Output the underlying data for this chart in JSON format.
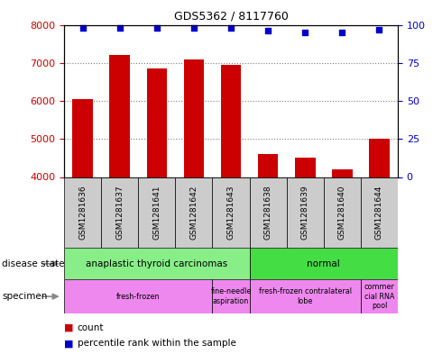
{
  "title": "GDS5362 / 8117760",
  "samples": [
    "GSM1281636",
    "GSM1281637",
    "GSM1281641",
    "GSM1281642",
    "GSM1281643",
    "GSM1281638",
    "GSM1281639",
    "GSM1281640",
    "GSM1281644"
  ],
  "counts": [
    6050,
    7200,
    6850,
    7100,
    6950,
    4600,
    4500,
    4200,
    5000
  ],
  "percentile_ranks": [
    98,
    98,
    98,
    98,
    98,
    96,
    95,
    95,
    97
  ],
  "ylim_left": [
    4000,
    8000
  ],
  "ylim_right": [
    0,
    100
  ],
  "yticks_left": [
    4000,
    5000,
    6000,
    7000,
    8000
  ],
  "yticks_right": [
    0,
    25,
    50,
    75,
    100
  ],
  "bar_color": "#cc0000",
  "dot_color": "#0000cc",
  "ds_labels": [
    "anaplastic thyroid carcinomas",
    "normal"
  ],
  "ds_ranges": [
    [
      0,
      5
    ],
    [
      5,
      9
    ]
  ],
  "ds_colors": [
    "#88ee88",
    "#44dd44"
  ],
  "sp_labels": [
    "fresh-frozen",
    "fine-needle\naspiration",
    "fresh-frozen contralateral\nlobe",
    "commer\ncial RNA\npool"
  ],
  "sp_ranges": [
    [
      0,
      4
    ],
    [
      4,
      5
    ],
    [
      5,
      8
    ],
    [
      8,
      9
    ]
  ],
  "sp_color": "#ee88ee",
  "label_color_left": "#cc0000",
  "label_color_right": "#0000cc",
  "legend_count_color": "#cc0000",
  "legend_pct_color": "#0000cc",
  "gray_box_color": "#cccccc"
}
